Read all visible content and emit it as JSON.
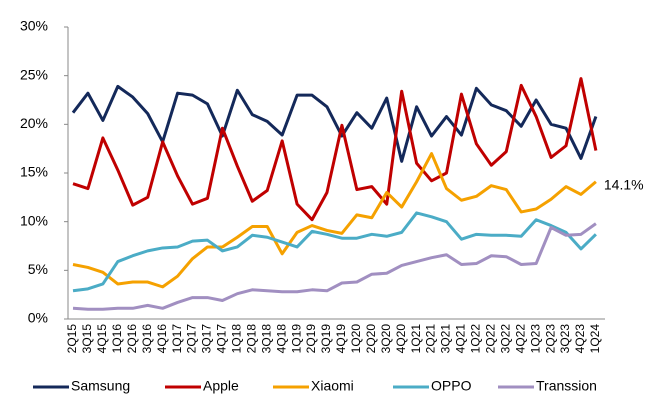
{
  "chart_data": {
    "type": "line",
    "categories": [
      "2Q15",
      "3Q15",
      "4Q15",
      "1Q16",
      "2Q16",
      "3Q16",
      "4Q16",
      "1Q17",
      "2Q17",
      "3Q17",
      "4Q17",
      "1Q18",
      "2Q18",
      "3Q18",
      "4Q18",
      "1Q19",
      "2Q19",
      "3Q19",
      "4Q19",
      "1Q20",
      "2Q20",
      "3Q20",
      "4Q20",
      "1Q21",
      "2Q21",
      "3Q21",
      "4Q21",
      "1Q22",
      "2Q22",
      "3Q22",
      "4Q22",
      "1Q23",
      "2Q23",
      "3Q23",
      "4Q23",
      "1Q24"
    ],
    "series": [
      {
        "name": "Samsung",
        "color": "#14295a",
        "values": [
          21.2,
          23.2,
          20.4,
          23.9,
          22.8,
          21.1,
          18.2,
          23.2,
          23.0,
          22.1,
          18.8,
          23.5,
          21.0,
          20.3,
          18.9,
          23.0,
          23.0,
          21.8,
          18.8,
          21.2,
          19.6,
          22.7,
          16.2,
          21.8,
          18.8,
          20.8,
          18.9,
          23.7,
          22.0,
          21.4,
          19.8,
          22.5,
          20.0,
          19.6,
          16.5,
          20.8
        ]
      },
      {
        "name": "Apple",
        "color": "#c00000",
        "values": [
          13.9,
          13.4,
          18.6,
          15.3,
          11.7,
          12.5,
          18.2,
          14.7,
          11.8,
          12.4,
          19.6,
          15.7,
          12.1,
          13.2,
          18.3,
          11.8,
          10.2,
          13.0,
          19.9,
          13.3,
          13.6,
          11.8,
          23.4,
          16.0,
          14.2,
          15.0,
          23.1,
          18.0,
          15.8,
          17.2,
          24.0,
          20.8,
          16.6,
          17.8,
          24.7,
          17.3
        ]
      },
      {
        "name": "Xiaomi",
        "color": "#f5a100",
        "values": [
          5.6,
          5.3,
          4.8,
          3.6,
          3.8,
          3.8,
          3.3,
          4.4,
          6.2,
          7.4,
          7.4,
          8.4,
          9.5,
          9.5,
          6.7,
          8.9,
          9.6,
          9.1,
          8.8,
          10.7,
          10.4,
          13.0,
          11.5,
          14.1,
          17.0,
          13.4,
          12.2,
          12.6,
          13.7,
          13.3,
          11.0,
          11.3,
          12.3,
          13.6,
          12.8,
          14.1
        ],
        "value_labels": [
          null,
          null,
          null,
          null,
          null,
          null,
          null,
          null,
          null,
          null,
          null,
          null,
          null,
          null,
          null,
          null,
          null,
          null,
          null,
          null,
          null,
          null,
          null,
          null,
          null,
          null,
          null,
          null,
          null,
          null,
          null,
          null,
          null,
          null,
          null,
          "14.1%"
        ]
      },
      {
        "name": "OPPO",
        "color": "#4bacc6",
        "values": [
          2.9,
          3.1,
          3.6,
          5.9,
          6.5,
          7.0,
          7.3,
          7.4,
          8.0,
          8.1,
          7.0,
          7.4,
          8.6,
          8.4,
          7.9,
          7.4,
          9.0,
          8.7,
          8.3,
          8.3,
          8.7,
          8.5,
          8.9,
          10.9,
          10.5,
          10.0,
          8.2,
          8.7,
          8.6,
          8.6,
          8.5,
          10.2,
          9.6,
          8.9,
          7.2,
          8.7
        ]
      },
      {
        "name": "Transsion",
        "color": "#a18fc1",
        "values": [
          1.1,
          1.0,
          1.0,
          1.1,
          1.1,
          1.4,
          1.1,
          1.7,
          2.2,
          2.2,
          1.9,
          2.6,
          3.0,
          2.9,
          2.8,
          2.8,
          3.0,
          2.9,
          3.7,
          3.8,
          4.6,
          4.7,
          5.5,
          5.9,
          6.3,
          6.6,
          5.6,
          5.7,
          6.5,
          6.4,
          5.6,
          5.7,
          9.4,
          8.6,
          8.7,
          9.8
        ]
      }
    ],
    "ylim": [
      0,
      30
    ],
    "yticks": [
      {
        "value": 0,
        "label": "0%"
      },
      {
        "value": 5,
        "label": "5%"
      },
      {
        "value": 10,
        "label": "10%"
      },
      {
        "value": 15,
        "label": "15%"
      },
      {
        "value": 20,
        "label": "20%"
      },
      {
        "value": 25,
        "label": "25%"
      },
      {
        "value": 30,
        "label": "30%"
      }
    ],
    "grid": false,
    "legend": "bottom"
  }
}
